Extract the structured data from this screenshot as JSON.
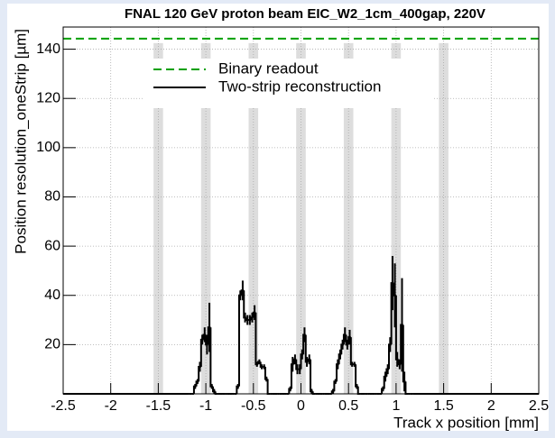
{
  "chart_data": {
    "type": "histogram",
    "title": "FNAL 120 GeV proton beam EIC_W2_1cm_400gap, 220V",
    "x_label": "Track x position [mm]",
    "y_label": "Position resolution_oneStrip [µm]",
    "xlim": [
      -2.5,
      2.5
    ],
    "ylim": [
      0,
      149
    ],
    "xticks": [
      -2.5,
      -2,
      -1.5,
      -1,
      -0.5,
      0,
      0.5,
      1,
      1.5,
      2,
      2.5
    ],
    "yticks": [
      20,
      40,
      60,
      80,
      100,
      120,
      140
    ],
    "grid": true,
    "legend": "upper left",
    "bands": {
      "centers": [
        -1.5,
        -1,
        -0.5,
        0,
        0.5,
        1,
        1.5
      ],
      "width": 0.1,
      "color": "#dddddd"
    },
    "series": [
      {
        "name": "Binary readout",
        "color": "#00a000",
        "style": "dashed",
        "value": 144.3
      },
      {
        "name": "Two-strip reconstruction",
        "color": "#000000",
        "style": "solid",
        "bins": [
          -2.5,
          -1.2,
          -1.175,
          -1.15,
          -1.125,
          -1.1,
          -1.075,
          -1.05,
          -1.025,
          -1.0,
          -0.975,
          -0.95,
          -0.925,
          -0.9,
          -0.875,
          -0.85,
          -0.825,
          -0.8,
          -0.775,
          -0.75,
          -0.725,
          -0.7,
          -0.675,
          -0.65,
          -0.625,
          -0.6,
          -0.575,
          -0.55,
          -0.525,
          -0.5,
          -0.475,
          -0.45,
          -0.425,
          -0.4,
          -0.375,
          -0.35,
          -0.325,
          -0.3,
          -0.275,
          -0.25,
          -0.225,
          -0.2,
          -0.175,
          -0.15,
          -0.125,
          -0.1,
          -0.075,
          -0.05,
          -0.025,
          0,
          0.025,
          0.05,
          0.075,
          0.1,
          0.125,
          0.15,
          0.175,
          0.2,
          0.225,
          0.25,
          0.275,
          0.3,
          0.325,
          0.35,
          0.375,
          0.4,
          0.425,
          0.45,
          0.475,
          0.5,
          0.525,
          0.55,
          0.575,
          0.6,
          0.625,
          0.65,
          0.675,
          0.7,
          0.725,
          0.75,
          0.775,
          0.8,
          0.825,
          0.85,
          0.875,
          0.9,
          0.925,
          0.95,
          0.975,
          1.0,
          1.025,
          1.05,
          1.075,
          1.1,
          1.125,
          1.15,
          1.175,
          1.2,
          2.5
        ],
        "counts": [
          0,
          0,
          0,
          0,
          3,
          5,
          11,
          22,
          24,
          20,
          27,
          3,
          1,
          0,
          0,
          0,
          0,
          0,
          0,
          0,
          0,
          0,
          3,
          40,
          42,
          31,
          30,
          30,
          31,
          33,
          12,
          13,
          11,
          11,
          6,
          0,
          0,
          0,
          0,
          0,
          0,
          0,
          0,
          0,
          2,
          12,
          14,
          10,
          10,
          16,
          24,
          13,
          14,
          1,
          0,
          0,
          0,
          0,
          0,
          0,
          0,
          0,
          1,
          5,
          12,
          16,
          20,
          24,
          20,
          23,
          12,
          12,
          3,
          0,
          0,
          0,
          0,
          0,
          0,
          0,
          0,
          0,
          0,
          2,
          7,
          10,
          20,
          45,
          40,
          14,
          12,
          28,
          5,
          0,
          0,
          0,
          0,
          0
        ],
        "errors": [
          null,
          null,
          null,
          null,
          1,
          1,
          2,
          2,
          3,
          4,
          10,
          1,
          1,
          null,
          null,
          null,
          null,
          null,
          null,
          null,
          null,
          null,
          1,
          2,
          4,
          2,
          2,
          2,
          2,
          3,
          1,
          1,
          1,
          1,
          1,
          null,
          null,
          null,
          null,
          null,
          null,
          null,
          null,
          null,
          1,
          3,
          2,
          2,
          2,
          2,
          3,
          2,
          2,
          1,
          null,
          null,
          null,
          null,
          null,
          null,
          null,
          null,
          1,
          1,
          2,
          2,
          2,
          3,
          2,
          3,
          1,
          1,
          1,
          null,
          null,
          null,
          null,
          null,
          null,
          null,
          null,
          null,
          null,
          1,
          2,
          2,
          3,
          11,
          13,
          3,
          2,
          19,
          4,
          null,
          null,
          null,
          null,
          null
        ]
      }
    ]
  }
}
